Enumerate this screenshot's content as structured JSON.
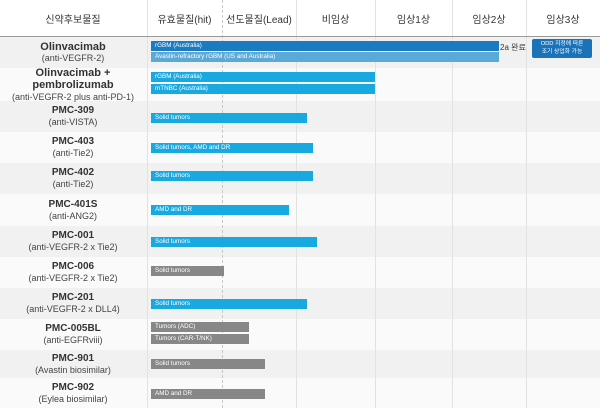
{
  "headers": {
    "candidate": "신약후보물질",
    "hit": "유효물질(hit)",
    "lead": "선도물질(Lead)",
    "nonclinical": "비임상",
    "phase1": "임상1상",
    "phase2": "임상2상",
    "phase3": "임상3상"
  },
  "rows": [
    {
      "name": "Olinvacimab",
      "target": "(anti-VEGFR-2)",
      "bars": [
        {
          "label": "rGBM (Australia)",
          "color": "#1a7bc1",
          "progress": 0.927
        },
        {
          "label": "Avastin-refractory rGBM (US and Australia)",
          "color": "#5aa9d6",
          "progress": 0.927
        }
      ],
      "note": "2a 완료",
      "badge": {
        "line1": "ODD 지정에 따른",
        "line2": "조기 상업화 가능"
      }
    },
    {
      "name": "Olinvacimab  +",
      "name2": "pembrolizumab",
      "target": "(anti-VEGFR-2 plus anti-PD-1)",
      "bars": [
        {
          "label": "rGBM (Australia)",
          "color": "#19a9e1",
          "progress": 0.596
        },
        {
          "label": "mTNBC (Australia)",
          "color": "#19a9e1",
          "progress": 0.596
        }
      ]
    },
    {
      "name": "PMC-309",
      "target": "(anti-VISTA)",
      "bars": [
        {
          "label": "Solid tumors",
          "color": "#19a9e1",
          "progress": 0.415
        }
      ]
    },
    {
      "name": "PMC-403",
      "target": "(anti-Tie2)",
      "bars": [
        {
          "label": "Solid tumors, AMD and DR",
          "color": "#19a9e1",
          "progress": 0.431
        }
      ]
    },
    {
      "name": "PMC-402",
      "target": "(anti-Tie2)",
      "bars": [
        {
          "label": "Solid tumors",
          "color": "#19a9e1",
          "progress": 0.431
        }
      ]
    },
    {
      "name": "PMC-401S",
      "target": "(anti-ANG2)",
      "bars": [
        {
          "label": "AMD and DR",
          "color": "#19a9e1",
          "progress": 0.367
        }
      ]
    },
    {
      "name": "PMC-001",
      "target": "(anti-VEGFR-2 x Tie2)",
      "bars": [
        {
          "label": "Solid tumors",
          "color": "#19a9e1",
          "progress": 0.443
        }
      ]
    },
    {
      "name": "PMC-006",
      "target": "(anti-VEGFR-2 x Tie2)",
      "bars": [
        {
          "label": "Solid tumors",
          "color": "#878787",
          "progress": 0.195
        }
      ]
    },
    {
      "name": "PMC-201",
      "target": "(anti-VEGFR-2 x DLL4)",
      "bars": [
        {
          "label": "Solid tumors",
          "color": "#19a9e1",
          "progress": 0.415
        }
      ]
    },
    {
      "name": "PMC-005BL",
      "target": "(anti-EGFRviii)",
      "bars": [
        {
          "label": "Tumors (ADC)",
          "color": "#878787",
          "progress": 0.26
        },
        {
          "label": "Tumors (CAR-T/NK)",
          "color": "#878787",
          "progress": 0.26
        }
      ]
    },
    {
      "name": "PMC-901",
      "target": "(Avastin biosimilar)",
      "bars": [
        {
          "label": "Solid tumors",
          "color": "#878787",
          "progress": 0.303
        }
      ]
    },
    {
      "name": "PMC-902",
      "target": "(Eylea biosimilar)",
      "bars": [
        {
          "label": "AMD and DR",
          "color": "#878787",
          "progress": 0.303
        }
      ]
    }
  ]
}
